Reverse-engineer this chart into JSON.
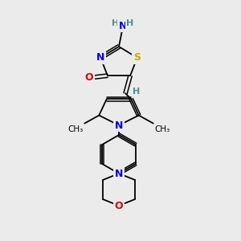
{
  "background_color": "#ebebeb",
  "atom_colors": {
    "N": "#0000ee",
    "O": "#dd0000",
    "S": "#ccaa00",
    "C": "#000000",
    "H": "#4a9090"
  },
  "bond_color": "#000000",
  "lw": 1.3,
  "dlw": 1.1,
  "doff": 2.2
}
